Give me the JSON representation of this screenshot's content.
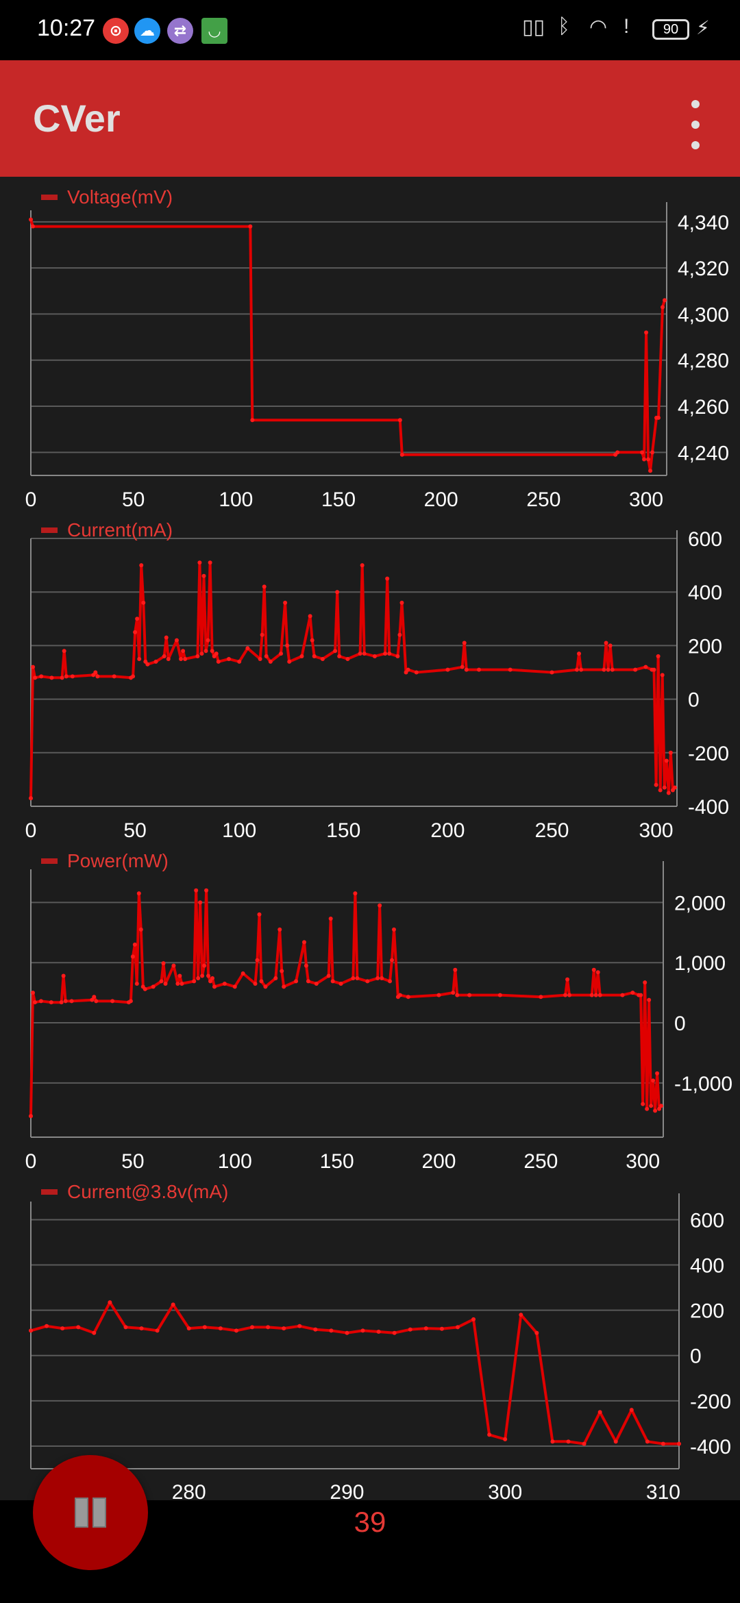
{
  "status_bar": {
    "time": "10:27",
    "battery": "90",
    "notification_icons": [
      "netease-music-icon",
      "weather-icon",
      "usb-icon",
      "store-bag-icon"
    ],
    "system_icons": [
      "nfc-icon",
      "bluetooth-icon",
      "wifi-icon",
      "alert-icon",
      "battery-icon",
      "charging-icon"
    ]
  },
  "app_bar": {
    "title": "CVer",
    "menu_icon": "overflow-menu-icon"
  },
  "colors": {
    "accent": "#c62828",
    "line": "#e00000",
    "background": "#1c1c1c",
    "grid": "#555555"
  },
  "bottom": {
    "counter": "39",
    "pause_icon": "pause-icon"
  },
  "chart_data": [
    {
      "type": "line",
      "legend": "Voltage(mV)",
      "xlim": [
        0,
        310
      ],
      "ylim": [
        4230,
        4345
      ],
      "x_ticks": [
        0,
        50,
        100,
        150,
        200,
        250,
        300
      ],
      "y_ticks": [
        4240,
        4260,
        4280,
        4300,
        4320,
        4340
      ],
      "y_tick_labels": [
        "4,240",
        "4,260",
        "4,280",
        "4,300",
        "4,320",
        "4,340"
      ],
      "axis_position": "right",
      "grid": true,
      "x": [
        0,
        1,
        107,
        108,
        180,
        181,
        285,
        286,
        298,
        299,
        300,
        301,
        302,
        303,
        305,
        306,
        308,
        309
      ],
      "y": [
        4341,
        4338,
        4338,
        4254,
        4254,
        4239,
        4239,
        4240,
        4240,
        4237,
        4292,
        4237,
        4232,
        4240,
        4255,
        4255,
        4303,
        4306
      ]
    },
    {
      "type": "line",
      "legend": "Current(mA)",
      "xlim": [
        0,
        310
      ],
      "ylim": [
        -400,
        600
      ],
      "x_ticks": [
        0,
        50,
        100,
        150,
        200,
        250,
        300
      ],
      "y_ticks": [
        -400,
        -200,
        0,
        200,
        400,
        600
      ],
      "y_tick_labels": [
        "-400",
        "-200",
        "0",
        "200",
        "400",
        "600"
      ],
      "axis_position": "right",
      "grid": true,
      "x": [
        0,
        1,
        2,
        5,
        10,
        15,
        16,
        17,
        20,
        30,
        31,
        32,
        40,
        48,
        49,
        50,
        51,
        52,
        53,
        54,
        55,
        56,
        60,
        64,
        65,
        66,
        70,
        72,
        73,
        74,
        80,
        81,
        82,
        83,
        84,
        85,
        86,
        87,
        88,
        89,
        90,
        95,
        100,
        104,
        110,
        111,
        112,
        113,
        115,
        120,
        122,
        123,
        124,
        130,
        134,
        135,
        136,
        140,
        146,
        147,
        148,
        152,
        158,
        159,
        160,
        165,
        170,
        171,
        172,
        176,
        177,
        178,
        180,
        181,
        185,
        200,
        207,
        208,
        209,
        215,
        230,
        250,
        262,
        263,
        264,
        275,
        276,
        277,
        278,
        279,
        290,
        295,
        298,
        299,
        300,
        301,
        302,
        303,
        304,
        305,
        306,
        307,
        308,
        309
      ],
      "y": [
        -370,
        120,
        80,
        85,
        80,
        80,
        180,
        85,
        85,
        90,
        100,
        85,
        85,
        80,
        85,
        250,
        300,
        150,
        500,
        360,
        140,
        130,
        140,
        160,
        230,
        150,
        220,
        150,
        180,
        150,
        160,
        510,
        170,
        460,
        180,
        220,
        510,
        180,
        160,
        170,
        140,
        150,
        140,
        190,
        150,
        240,
        420,
        160,
        140,
        170,
        360,
        200,
        140,
        160,
        310,
        220,
        160,
        150,
        180,
        400,
        160,
        150,
        170,
        500,
        170,
        160,
        170,
        450,
        170,
        160,
        240,
        360,
        100,
        110,
        100,
        110,
        120,
        210,
        110,
        110,
        110,
        100,
        110,
        170,
        110,
        110,
        210,
        110,
        200,
        110,
        110,
        120,
        110,
        110,
        -320,
        160,
        -340,
        90,
        -330,
        -230,
        -350,
        -200,
        -340,
        -330
      ]
    },
    {
      "type": "line",
      "legend": "Power(mW)",
      "xlim": [
        0,
        310
      ],
      "ylim": [
        -1900,
        2550
      ],
      "x_ticks": [
        0,
        50,
        100,
        150,
        200,
        250,
        300
      ],
      "y_ticks": [
        -1000,
        0,
        1000,
        2000
      ],
      "y_tick_labels": [
        "-1,000",
        "0",
        "1,000",
        "2,000"
      ],
      "axis_position": "right",
      "grid": true,
      "x": [
        0,
        1,
        2,
        5,
        10,
        15,
        16,
        17,
        20,
        30,
        31,
        32,
        40,
        48,
        49,
        50,
        51,
        52,
        53,
        54,
        55,
        56,
        60,
        64,
        65,
        66,
        70,
        72,
        73,
        74,
        80,
        81,
        82,
        83,
        84,
        85,
        86,
        87,
        88,
        89,
        90,
        95,
        100,
        104,
        110,
        111,
        112,
        113,
        115,
        120,
        122,
        123,
        124,
        130,
        134,
        135,
        136,
        140,
        146,
        147,
        148,
        152,
        158,
        159,
        160,
        165,
        170,
        171,
        172,
        176,
        177,
        178,
        180,
        181,
        185,
        200,
        207,
        208,
        209,
        215,
        230,
        250,
        262,
        263,
        264,
        275,
        276,
        277,
        278,
        279,
        290,
        295,
        298,
        299,
        300,
        301,
        302,
        303,
        304,
        305,
        306,
        307,
        308,
        309
      ],
      "y": [
        -1550,
        500,
        340,
        360,
        340,
        340,
        780,
        360,
        360,
        380,
        430,
        360,
        360,
        340,
        360,
        1100,
        1300,
        650,
        2150,
        1550,
        600,
        560,
        600,
        690,
        990,
        650,
        950,
        650,
        780,
        650,
        690,
        2200,
        740,
        2000,
        780,
        950,
        2200,
        780,
        690,
        740,
        600,
        650,
        600,
        820,
        650,
        1040,
        1800,
        690,
        600,
        740,
        1550,
        860,
        600,
        690,
        1340,
        950,
        690,
        650,
        780,
        1730,
        690,
        650,
        740,
        2150,
        740,
        690,
        740,
        1950,
        740,
        690,
        1040,
        1550,
        430,
        460,
        430,
        460,
        500,
        880,
        460,
        460,
        460,
        430,
        460,
        720,
        460,
        460,
        880,
        460,
        840,
        460,
        460,
        500,
        460,
        460,
        -1350,
        670,
        -1430,
        380,
        -1380,
        -960,
        -1460,
        -840,
        -1430,
        -1380
      ]
    },
    {
      "type": "line",
      "legend": "Current@3.8v(mA)",
      "xlim": [
        270,
        311
      ],
      "ylim": [
        -500,
        680
      ],
      "x_ticks": [
        280,
        290,
        300,
        310
      ],
      "y_ticks": [
        -400,
        -200,
        0,
        200,
        400,
        600
      ],
      "y_tick_labels": [
        "-400",
        "-200",
        "0",
        "200",
        "400",
        "600"
      ],
      "axis_position": "right",
      "grid": true,
      "x": [
        270,
        271,
        272,
        273,
        274,
        275,
        276,
        277,
        278,
        279,
        280,
        281,
        282,
        283,
        284,
        285,
        286,
        287,
        288,
        289,
        290,
        291,
        292,
        293,
        294,
        295,
        296,
        297,
        298,
        299,
        300,
        301,
        302,
        303,
        304,
        305,
        306,
        307,
        308,
        309,
        310,
        311
      ],
      "y": [
        110,
        130,
        120,
        125,
        100,
        235,
        125,
        120,
        110,
        225,
        120,
        125,
        120,
        110,
        125,
        125,
        120,
        130,
        115,
        110,
        100,
        110,
        105,
        100,
        115,
        120,
        118,
        125,
        160,
        -350,
        -370,
        180,
        100,
        -380,
        -380,
        -390,
        -250,
        -380,
        -240,
        -380,
        -390,
        -390
      ]
    }
  ]
}
